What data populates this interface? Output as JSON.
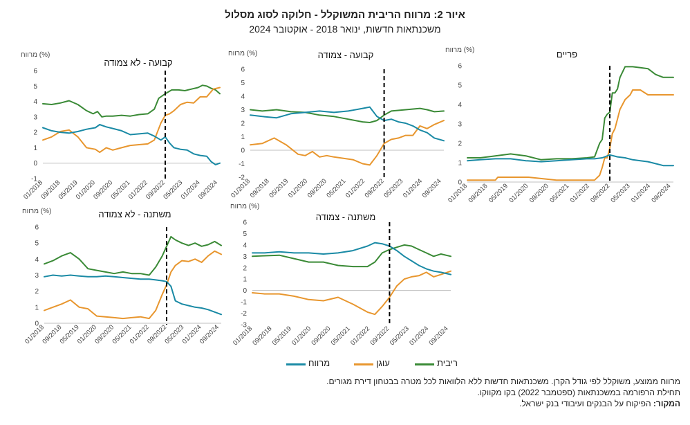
{
  "title": "איור 2: מרווח הריבית המשוקלל - חלוקה לסוג מסלול",
  "subtitle": "משכנתאות חדשות, ינואר 2018 - אוקטובר 2024",
  "legend": [
    {
      "label": "מרווח",
      "color": "#1a8aa5"
    },
    {
      "label": "עוגן",
      "color": "#e8962e"
    },
    {
      "label": "ריבית",
      "color": "#3a8a36"
    }
  ],
  "notes": {
    "line1": "מרווח ממוצע, משוקלל לפי גודל הקרן. משכנתאות חדשות ללא הלוואות לכל מטרה בבטחון דירת מגורים.",
    "line2": "תחילת הרפורמה במשכנתאות (ספטמבר 2022) בקו  מקווקו.",
    "source_label": "המקור:",
    "source_text": " הפיקוח על הבנקים ועיבודי בנק ישראל."
  },
  "chart_data": [
    {
      "type": "line",
      "title": "קבועה - לא צמודה",
      "ylabel": "מרווח (%)",
      "ylim": [
        -1,
        6
      ],
      "yticks": [
        -1,
        0,
        1,
        2,
        3,
        4,
        5,
        6
      ],
      "xlim": [
        "2018-01",
        "2024-10"
      ],
      "xticks": [
        "01/2018",
        "09/2018",
        "05/2019",
        "01/2020",
        "09/2020",
        "05/2021",
        "01/2022",
        "09/2022",
        "05/2023",
        "01/2024",
        "09/2024"
      ],
      "reform_line": "2022-09",
      "series": [
        {
          "name": "ריבית",
          "color": "#3a8a36",
          "x": [
            "2018-01",
            "2018-05",
            "2018-09",
            "2019-01",
            "2019-05",
            "2019-09",
            "2019-12",
            "2020-02",
            "2020-04",
            "2020-06",
            "2020-09",
            "2021-01",
            "2021-05",
            "2021-09",
            "2022-01",
            "2022-04",
            "2022-06",
            "2022-09",
            "2022-12",
            "2023-03",
            "2023-06",
            "2023-09",
            "2023-12",
            "2024-02",
            "2024-04",
            "2024-06",
            "2024-08",
            "2024-10"
          ],
          "values": [
            3.85,
            3.8,
            3.9,
            4.05,
            3.8,
            3.4,
            3.2,
            3.35,
            3.0,
            3.05,
            3.05,
            3.1,
            3.05,
            3.15,
            3.2,
            3.5,
            4.2,
            4.5,
            4.75,
            4.75,
            4.7,
            4.8,
            4.9,
            5.05,
            5.0,
            4.85,
            4.75,
            4.5
          ]
        },
        {
          "name": "עוגן",
          "color": "#e8962e",
          "x": [
            "2018-01",
            "2018-05",
            "2018-09",
            "2019-01",
            "2019-05",
            "2019-09",
            "2020-01",
            "2020-03",
            "2020-06",
            "2020-09",
            "2021-01",
            "2021-05",
            "2021-09",
            "2022-01",
            "2022-04",
            "2022-07",
            "2022-09",
            "2022-11",
            "2023-01",
            "2023-04",
            "2023-07",
            "2023-10",
            "2024-01",
            "2024-04",
            "2024-07",
            "2024-10"
          ],
          "values": [
            1.5,
            1.7,
            2.05,
            2.15,
            1.7,
            1.0,
            0.9,
            0.7,
            1.0,
            0.85,
            1.0,
            1.15,
            1.2,
            1.25,
            1.5,
            2.6,
            3.1,
            3.2,
            3.4,
            3.8,
            3.95,
            3.9,
            4.3,
            4.3,
            4.8,
            4.9
          ]
        },
        {
          "name": "מרווח",
          "color": "#1a8aa5",
          "x": [
            "2018-01",
            "2018-05",
            "2018-09",
            "2019-01",
            "2019-05",
            "2019-09",
            "2020-01",
            "2020-03",
            "2020-06",
            "2020-09",
            "2021-01",
            "2021-05",
            "2021-09",
            "2022-01",
            "2022-04",
            "2022-07",
            "2022-09",
            "2022-11",
            "2023-01",
            "2023-04",
            "2023-07",
            "2023-10",
            "2024-01",
            "2024-04",
            "2024-06",
            "2024-08",
            "2024-10"
          ],
          "values": [
            2.3,
            2.1,
            2.0,
            1.95,
            2.05,
            2.2,
            2.3,
            2.5,
            2.35,
            2.25,
            2.1,
            1.85,
            1.9,
            1.95,
            1.75,
            1.5,
            1.7,
            1.3,
            1.0,
            0.9,
            0.85,
            0.6,
            0.5,
            0.45,
            0.1,
            -0.1,
            0.0
          ]
        }
      ]
    },
    {
      "type": "line",
      "title": "קבועה - צמודה",
      "ylabel": "מרווח (%)",
      "ylim": [
        -2,
        6
      ],
      "yticks": [
        -2,
        -1,
        0,
        1,
        2,
        3,
        4,
        5,
        6
      ],
      "xlim": [
        "2018-01",
        "2024-10"
      ],
      "xticks": [
        "01/2018",
        "09/2018",
        "05/2019",
        "01/2020",
        "09/2020",
        "05/2021",
        "01/2022",
        "09/2022",
        "05/2023",
        "01/2024",
        "09/2024"
      ],
      "reform_line": "2022-09",
      "series": [
        {
          "name": "ריבית",
          "color": "#3a8a36",
          "x": [
            "2018-01",
            "2018-06",
            "2018-12",
            "2019-06",
            "2019-12",
            "2020-06",
            "2020-12",
            "2021-06",
            "2021-12",
            "2022-03",
            "2022-06",
            "2022-09",
            "2022-12",
            "2023-06",
            "2023-12",
            "2024-03",
            "2024-06",
            "2024-10"
          ],
          "values": [
            3.0,
            2.9,
            3.0,
            2.85,
            2.8,
            2.6,
            2.5,
            2.3,
            2.1,
            2.05,
            2.2,
            2.6,
            2.9,
            3.0,
            3.1,
            3.0,
            2.85,
            2.9
          ]
        },
        {
          "name": "עוגן",
          "color": "#e8962e",
          "x": [
            "2018-01",
            "2018-06",
            "2018-11",
            "2019-04",
            "2019-09",
            "2019-12",
            "2020-03",
            "2020-06",
            "2020-09",
            "2020-12",
            "2021-04",
            "2021-08",
            "2021-12",
            "2022-03",
            "2022-06",
            "2022-09",
            "2022-12",
            "2023-03",
            "2023-06",
            "2023-09",
            "2023-12",
            "2024-03",
            "2024-06",
            "2024-10"
          ],
          "values": [
            0.4,
            0.5,
            0.9,
            0.4,
            -0.3,
            -0.4,
            -0.1,
            -0.5,
            -0.4,
            -0.5,
            -0.6,
            -0.7,
            -1.0,
            -1.1,
            -0.4,
            0.5,
            0.8,
            0.9,
            1.1,
            1.1,
            1.8,
            1.6,
            1.9,
            2.2
          ]
        },
        {
          "name": "מרווח",
          "color": "#1a8aa5",
          "x": [
            "2018-01",
            "2018-06",
            "2018-12",
            "2019-06",
            "2019-12",
            "2020-06",
            "2020-12",
            "2021-06",
            "2021-12",
            "2022-03",
            "2022-06",
            "2022-09",
            "2022-12",
            "2023-03",
            "2023-06",
            "2023-09",
            "2023-12",
            "2024-03",
            "2024-06",
            "2024-10"
          ],
          "values": [
            2.6,
            2.5,
            2.4,
            2.7,
            2.8,
            2.9,
            2.8,
            2.9,
            3.1,
            3.2,
            2.5,
            2.2,
            2.3,
            2.1,
            2.0,
            1.8,
            1.5,
            1.3,
            0.9,
            0.7
          ]
        }
      ]
    },
    {
      "type": "line",
      "title": "פריים",
      "ylabel": "מרווח (%)",
      "ylim": [
        0,
        6
      ],
      "yticks": [
        0,
        1,
        2,
        3,
        4,
        5,
        6
      ],
      "xlim": [
        "2018-01",
        "2024-10"
      ],
      "xticks": [
        "01/2018",
        "09/2018",
        "05/2019",
        "01/2020",
        "09/2020",
        "05/2021",
        "01/2022",
        "09/2022",
        "05/2023",
        "01/2024",
        "09/2024"
      ],
      "reform_line": "2022-09",
      "series": [
        {
          "name": "ריבית",
          "color": "#3a8a36",
          "x": [
            "2018-01",
            "2018-06",
            "2018-12",
            "2019-06",
            "2019-12",
            "2020-06",
            "2020-12",
            "2021-06",
            "2021-12",
            "2022-03",
            "2022-05",
            "2022-06",
            "2022-07",
            "2022-08",
            "2022-09",
            "2022-10",
            "2022-11",
            "2022-12",
            "2023-01",
            "2023-03",
            "2023-06",
            "2023-09",
            "2023-12",
            "2024-03",
            "2024-06",
            "2024-10"
          ],
          "values": [
            1.25,
            1.25,
            1.35,
            1.45,
            1.35,
            1.15,
            1.2,
            1.2,
            1.25,
            1.3,
            2.0,
            2.2,
            3.3,
            3.5,
            3.6,
            4.6,
            4.6,
            4.8,
            5.4,
            5.95,
            5.95,
            5.9,
            5.85,
            5.55,
            5.4,
            5.4
          ]
        },
        {
          "name": "עוגן",
          "color": "#e8962e",
          "x": [
            "2018-01",
            "2018-12",
            "2019-01",
            "2019-12",
            "2020-01",
            "2020-12",
            "2021-06",
            "2022-03",
            "2022-05",
            "2022-06",
            "2022-07",
            "2022-08",
            "2022-09",
            "2022-10",
            "2022-11",
            "2022-12",
            "2023-01",
            "2023-03",
            "2023-05",
            "2023-06",
            "2023-09",
            "2023-12",
            "2024-06",
            "2024-10"
          ],
          "values": [
            0.1,
            0.1,
            0.25,
            0.25,
            0.25,
            0.1,
            0.1,
            0.1,
            0.35,
            0.75,
            1.25,
            1.25,
            1.75,
            2.5,
            2.75,
            3.25,
            3.75,
            4.25,
            4.5,
            4.75,
            4.75,
            4.5,
            4.5,
            4.5
          ]
        },
        {
          "name": "מרווח",
          "color": "#1a8aa5",
          "x": [
            "2018-01",
            "2018-06",
            "2018-12",
            "2019-06",
            "2019-12",
            "2020-06",
            "2020-12",
            "2021-06",
            "2021-12",
            "2022-03",
            "2022-06",
            "2022-09",
            "2022-12",
            "2023-03",
            "2023-06",
            "2023-09",
            "2023-12",
            "2024-03",
            "2024-06",
            "2024-10"
          ],
          "values": [
            1.1,
            1.15,
            1.2,
            1.2,
            1.1,
            1.05,
            1.1,
            1.15,
            1.2,
            1.2,
            1.25,
            1.4,
            1.3,
            1.25,
            1.15,
            1.1,
            1.05,
            0.95,
            0.85,
            0.85
          ]
        }
      ]
    },
    {
      "type": "line",
      "title": "משתנה - לא צמודה",
      "ylabel": "מרווח (%)",
      "ylim": [
        0,
        6
      ],
      "yticks": [
        0,
        1,
        2,
        3,
        4,
        5,
        6
      ],
      "xlim": [
        "2018-01",
        "2024-10"
      ],
      "xticks": [
        "01/2018",
        "09/2018",
        "05/2019",
        "01/2020",
        "09/2020",
        "05/2021",
        "01/2022",
        "09/2022",
        "05/2023",
        "01/2024",
        "09/2024"
      ],
      "reform_line": "2022-09",
      "series": [
        {
          "name": "ריבית",
          "color": "#3a8a36",
          "x": [
            "2018-01",
            "2018-05",
            "2018-09",
            "2019-01",
            "2019-05",
            "2019-09",
            "2020-01",
            "2020-05",
            "2020-09",
            "2021-01",
            "2021-05",
            "2021-09",
            "2022-01",
            "2022-04",
            "2022-07",
            "2022-09",
            "2022-11",
            "2023-01",
            "2023-04",
            "2023-07",
            "2023-10",
            "2024-01",
            "2024-04",
            "2024-07",
            "2024-10"
          ],
          "values": [
            3.7,
            3.9,
            4.2,
            4.4,
            4.0,
            3.4,
            3.3,
            3.2,
            3.1,
            3.2,
            3.1,
            3.1,
            3.0,
            3.5,
            4.2,
            4.8,
            5.4,
            5.2,
            5.0,
            4.85,
            5.0,
            4.8,
            4.9,
            5.1,
            4.85
          ]
        },
        {
          "name": "עוגן",
          "color": "#e8962e",
          "x": [
            "2018-01",
            "2018-05",
            "2018-09",
            "2019-01",
            "2019-05",
            "2019-09",
            "2020-01",
            "2020-05",
            "2020-09",
            "2021-01",
            "2021-05",
            "2021-09",
            "2022-01",
            "2022-04",
            "2022-07",
            "2022-09",
            "2022-11",
            "2023-01",
            "2023-04",
            "2023-07",
            "2023-10",
            "2024-01",
            "2024-04",
            "2024-07",
            "2024-10"
          ],
          "values": [
            0.8,
            1.0,
            1.2,
            1.45,
            1.0,
            0.9,
            0.45,
            0.4,
            0.35,
            0.3,
            0.35,
            0.4,
            0.3,
            0.8,
            1.8,
            2.4,
            3.2,
            3.6,
            3.9,
            3.85,
            4.0,
            3.8,
            4.2,
            4.5,
            4.3
          ]
        },
        {
          "name": "מרווח",
          "color": "#1a8aa5",
          "x": [
            "2018-01",
            "2018-05",
            "2018-09",
            "2019-01",
            "2019-05",
            "2019-09",
            "2020-01",
            "2020-05",
            "2020-09",
            "2021-01",
            "2021-05",
            "2021-09",
            "2022-01",
            "2022-04",
            "2022-07",
            "2022-09",
            "2022-11",
            "2023-01",
            "2023-04",
            "2023-07",
            "2023-10",
            "2024-01",
            "2024-04",
            "2024-07",
            "2024-10"
          ],
          "values": [
            2.9,
            3.0,
            2.95,
            3.0,
            2.95,
            2.9,
            2.9,
            2.95,
            2.9,
            2.85,
            2.8,
            2.75,
            2.75,
            2.7,
            2.65,
            2.6,
            2.3,
            1.4,
            1.2,
            1.1,
            1.0,
            0.95,
            0.85,
            0.7,
            0.55
          ]
        }
      ]
    },
    {
      "type": "line",
      "title": "משתנה - צמודה",
      "ylabel": "מרווח (%)",
      "ylim": [
        -3,
        6
      ],
      "yticks": [
        -3,
        -2,
        -1,
        0,
        1,
        2,
        3,
        4,
        5,
        6
      ],
      "xlim": [
        "2018-01",
        "2024-10"
      ],
      "xticks": [
        "01/2018",
        "09/2018",
        "05/2019",
        "01/2020",
        "09/2020",
        "05/2021",
        "01/2022",
        "09/2022",
        "05/2023",
        "01/2024",
        "09/2024"
      ],
      "reform_line": "2022-09",
      "series": [
        {
          "name": "ריבית",
          "color": "#3a8a36",
          "x": [
            "2018-01",
            "2018-06",
            "2018-12",
            "2019-06",
            "2019-12",
            "2020-06",
            "2020-12",
            "2021-06",
            "2021-12",
            "2022-03",
            "2022-06",
            "2022-09",
            "2022-12",
            "2023-03",
            "2023-06",
            "2023-09",
            "2023-12",
            "2024-03",
            "2024-06",
            "2024-10"
          ],
          "values": [
            3.0,
            3.05,
            3.1,
            2.8,
            2.5,
            2.5,
            2.2,
            2.1,
            2.1,
            2.5,
            3.3,
            3.6,
            3.8,
            4.0,
            3.9,
            3.6,
            3.3,
            3.0,
            3.2,
            3.0
          ]
        },
        {
          "name": "עוגן",
          "color": "#e8962e",
          "x": [
            "2018-01",
            "2018-06",
            "2018-12",
            "2019-06",
            "2019-12",
            "2020-06",
            "2020-12",
            "2021-06",
            "2021-12",
            "2022-03",
            "2022-06",
            "2022-09",
            "2022-12",
            "2023-03",
            "2023-06",
            "2023-09",
            "2023-12",
            "2024-03",
            "2024-06",
            "2024-10"
          ],
          "values": [
            -0.2,
            -0.3,
            -0.3,
            -0.5,
            -0.8,
            -0.9,
            -0.6,
            -1.2,
            -1.9,
            -2.1,
            -1.4,
            -0.6,
            0.4,
            1.0,
            1.2,
            1.3,
            1.6,
            1.2,
            1.4,
            1.7
          ]
        },
        {
          "name": "מרווח",
          "color": "#1a8aa5",
          "x": [
            "2018-01",
            "2018-06",
            "2018-12",
            "2019-06",
            "2019-12",
            "2020-06",
            "2020-12",
            "2021-06",
            "2021-12",
            "2022-03",
            "2022-06",
            "2022-09",
            "2022-12",
            "2023-03",
            "2023-06",
            "2023-09",
            "2023-12",
            "2024-03",
            "2024-06",
            "2024-10"
          ],
          "values": [
            3.3,
            3.3,
            3.4,
            3.3,
            3.3,
            3.2,
            3.3,
            3.5,
            3.9,
            4.2,
            4.1,
            3.9,
            3.5,
            3.0,
            2.6,
            2.2,
            1.9,
            1.7,
            1.6,
            1.4
          ]
        }
      ]
    }
  ]
}
